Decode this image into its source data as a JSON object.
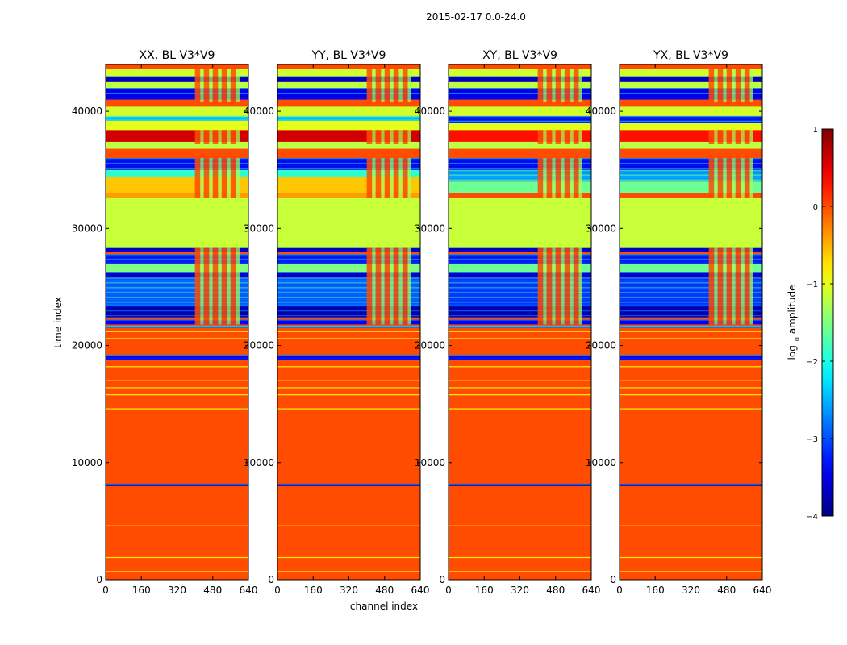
{
  "figure": {
    "suptitle": "2015-02-17 0.0-24.0"
  },
  "chart_data": {
    "type": "heatmap",
    "xlabel": "channel index",
    "ylabel": "time index",
    "xlim": [
      0,
      640
    ],
    "ylim": [
      0,
      44000
    ],
    "xticks": [
      0,
      160,
      320,
      480,
      640
    ],
    "yticks": [
      0,
      10000,
      20000,
      30000,
      40000
    ],
    "panels": [
      {
        "title": "XX, BL V3*V9",
        "polarization": "XX"
      },
      {
        "title": "YY, BL V3*V9",
        "polarization": "YY"
      },
      {
        "title": "XY, BL V3*V9",
        "polarization": "XY"
      },
      {
        "title": "YX, BL V3*V9",
        "polarization": "YX"
      }
    ],
    "colorbar": {
      "label": "log10 amplitude",
      "label_main": "log",
      "label_sub": "10",
      "label_tail": " amplitude",
      "range": [
        -4,
        1
      ],
      "ticks": [
        1,
        0,
        -1,
        -2,
        -3,
        -4
      ],
      "colormap": "jet"
    },
    "bands_auto": [
      {
        "t0": 0,
        "t1": 44000,
        "v": 0.0
      },
      {
        "t0": 8000,
        "t1": 8200,
        "v": -3.6
      },
      {
        "t0": 18800,
        "t1": 19200,
        "v": -3.3
      },
      {
        "t0": 21500,
        "t1": 21700,
        "v": -2.8
      },
      {
        "t0": 21800,
        "t1": 22200,
        "v": -3.4
      },
      {
        "t0": 22400,
        "t1": 23400,
        "v": -3.7
      },
      {
        "t0": 23400,
        "t1": 25800,
        "v": -2.8
      },
      {
        "t0": 25800,
        "t1": 26300,
        "v": -3.5
      },
      {
        "t0": 26300,
        "t1": 27000,
        "v": -1.5
      },
      {
        "t0": 27000,
        "t1": 27800,
        "v": -3.2
      },
      {
        "t0": 28000,
        "t1": 28400,
        "v": -3.6
      },
      {
        "t0": 28400,
        "t1": 32600,
        "v": -1.15
      },
      {
        "t0": 32600,
        "t1": 33000,
        "v": -0.4
      },
      {
        "t0": 33000,
        "t1": 34400,
        "v": -0.6
      },
      {
        "t0": 34400,
        "t1": 35000,
        "v": -1.9
      },
      {
        "t0": 35000,
        "t1": 36000,
        "v": -3.3
      },
      {
        "t0": 36800,
        "t1": 37400,
        "v": -1.2
      },
      {
        "t0": 37400,
        "t1": 38400,
        "v": 0.6
      },
      {
        "t0": 38400,
        "t1": 39200,
        "v": -1.0
      },
      {
        "t0": 39200,
        "t1": 39600,
        "v": -2.3
      },
      {
        "t0": 39600,
        "t1": 40400,
        "v": -1.1
      },
      {
        "t0": 40400,
        "t1": 41000,
        "v": 0.0
      },
      {
        "t0": 41000,
        "t1": 42000,
        "v": -3.4
      },
      {
        "t0": 42000,
        "t1": 42500,
        "v": -1.2
      },
      {
        "t0": 42500,
        "t1": 43000,
        "v": -3.6
      },
      {
        "t0": 43000,
        "t1": 43600,
        "v": -1.1
      },
      {
        "t0": 43600,
        "t1": 44000,
        "v": 0.0
      }
    ],
    "bands_cross": [
      {
        "t0": 0,
        "t1": 44000,
        "v": 0.0
      },
      {
        "t0": 8000,
        "t1": 8200,
        "v": -3.6
      },
      {
        "t0": 18800,
        "t1": 19200,
        "v": -3.3
      },
      {
        "t0": 21500,
        "t1": 21700,
        "v": -2.8
      },
      {
        "t0": 21800,
        "t1": 22200,
        "v": -3.4
      },
      {
        "t0": 22400,
        "t1": 23400,
        "v": -3.7
      },
      {
        "t0": 23400,
        "t1": 25800,
        "v": -3.0
      },
      {
        "t0": 25800,
        "t1": 26300,
        "v": -3.5
      },
      {
        "t0": 26300,
        "t1": 27000,
        "v": -1.6
      },
      {
        "t0": 27000,
        "t1": 27800,
        "v": -3.2
      },
      {
        "t0": 28000,
        "t1": 28400,
        "v": -3.6
      },
      {
        "t0": 28400,
        "t1": 32600,
        "v": -1.15
      },
      {
        "t0": 32600,
        "t1": 33000,
        "v": 0.0
      },
      {
        "t0": 33000,
        "t1": 34000,
        "v": -1.6
      },
      {
        "t0": 34000,
        "t1": 35000,
        "v": -2.5
      },
      {
        "t0": 35000,
        "t1": 36000,
        "v": -3.3
      },
      {
        "t0": 36800,
        "t1": 37400,
        "v": -1.2
      },
      {
        "t0": 37400,
        "t1": 38400,
        "v": 0.3
      },
      {
        "t0": 38400,
        "t1": 39000,
        "v": -1.0
      },
      {
        "t0": 39000,
        "t1": 39600,
        "v": -3.2
      },
      {
        "t0": 39600,
        "t1": 40400,
        "v": -1.1
      },
      {
        "t0": 40400,
        "t1": 41000,
        "v": 0.0
      },
      {
        "t0": 41000,
        "t1": 42000,
        "v": -3.4
      },
      {
        "t0": 42000,
        "t1": 42500,
        "v": -1.2
      },
      {
        "t0": 42500,
        "t1": 43000,
        "v": -3.6
      },
      {
        "t0": 43000,
        "t1": 43600,
        "v": -1.1
      },
      {
        "t0": 43600,
        "t1": 44000,
        "v": 0.0
      }
    ],
    "thin_lines": [
      700,
      1900,
      4600,
      14600,
      15800,
      16400,
      17000,
      18200,
      20600,
      21200
    ],
    "rfi_channels": [
      400,
      600
    ],
    "rfi_time_ranges": [
      [
        21800,
        28400
      ],
      [
        32600,
        36000
      ],
      [
        37200,
        38400
      ],
      [
        40800,
        43600
      ]
    ]
  }
}
